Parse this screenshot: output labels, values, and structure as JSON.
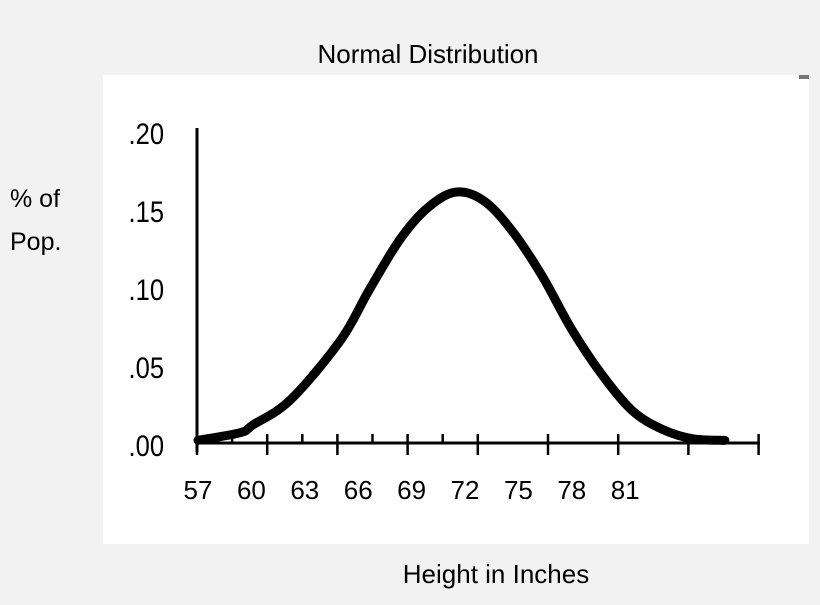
{
  "chart_data": {
    "type": "line",
    "title": "Normal Distribution",
    "xlabel": "Height in Inches",
    "ylabel": [
      "% of",
      "Pop."
    ],
    "x_tick_labels": [
      "57",
      "60",
      "63",
      "66",
      "69",
      "72",
      "75",
      "78",
      "81"
    ],
    "y_tick_labels": [
      ".20",
      ".15",
      ".10",
      ".05",
      ".00"
    ],
    "y_ticks": [
      0.2,
      0.15,
      0.1,
      0.05,
      0.0
    ],
    "xlim": [
      57,
      88.6
    ],
    "ylim": [
      0,
      0.2
    ],
    "grid": false,
    "series": [
      {
        "color": "#000000",
        "points": [
          [
            57.0,
            0.003
          ],
          [
            59.4,
            0.008
          ],
          [
            60.1,
            0.013
          ],
          [
            62.2,
            0.029
          ],
          [
            65.0,
            0.067
          ],
          [
            66.6,
            0.099
          ],
          [
            68.3,
            0.131
          ],
          [
            69.8,
            0.151
          ],
          [
            71.4,
            0.162
          ],
          [
            73.0,
            0.157
          ],
          [
            74.6,
            0.138
          ],
          [
            76.3,
            0.109
          ],
          [
            78.0,
            0.074
          ],
          [
            79.7,
            0.045
          ],
          [
            81.4,
            0.022
          ],
          [
            83.1,
            0.01
          ],
          [
            84.8,
            0.004
          ],
          [
            86.6,
            0.003
          ]
        ]
      }
    ]
  }
}
